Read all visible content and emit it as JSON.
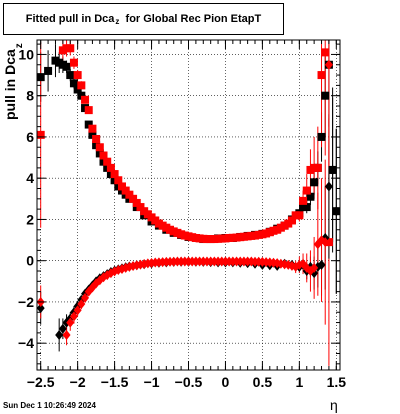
{
  "title": {
    "main": "Fitted pull in Dca",
    "sub": "z",
    "tail": "for Global Rec Pion EtapT"
  },
  "ylabel": {
    "main": "pull in Dca",
    "sub": "z"
  },
  "xlabel": "η",
  "timestamp": "Sun Dec  1 10:26:49 2024",
  "chart_data": {
    "type": "scatter",
    "xlim": [
      -2.55,
      1.55
    ],
    "ylim": [
      -5.3,
      10.7
    ],
    "grid": true,
    "xticks": [
      -2.5,
      -2,
      -1.5,
      -1,
      -0.5,
      0,
      0.5,
      1,
      1.5
    ],
    "xtick_labels": [
      "−2.5",
      "−2",
      "−1.5",
      "−1",
      "−0.5",
      "0",
      "0.5",
      "1",
      "1.5"
    ],
    "yticks": [
      -4,
      -2,
      0,
      2,
      4,
      6,
      8,
      10
    ],
    "ytick_labels": [
      "−4",
      "−2",
      "0",
      "2",
      "4",
      "6",
      "8",
      "10"
    ],
    "series": [
      {
        "color": "#000000",
        "marker": "square",
        "x": [
          -2.5,
          -2.4,
          -2.3,
          -2.25,
          -2.2,
          -2.15,
          -2.1,
          -2.05,
          -2.0,
          -1.95,
          -1.9,
          -1.85,
          -1.8,
          -1.75,
          -1.7,
          -1.65,
          -1.6,
          -1.55,
          -1.5,
          -1.45,
          -1.4,
          -1.35,
          -1.3,
          -1.2,
          -1.1,
          -1.0,
          -0.9,
          -0.8,
          -0.7,
          -0.6,
          -0.5,
          -0.4,
          -0.3,
          -0.2,
          -0.1,
          0.0,
          0.1,
          0.2,
          0.3,
          0.4,
          0.5,
          0.6,
          0.7,
          0.8,
          0.9,
          1.0,
          1.05,
          1.1,
          1.15,
          1.2,
          1.25,
          1.3,
          1.35,
          1.4,
          1.45,
          1.5
        ],
        "y": [
          8.9,
          9.2,
          9.7,
          9.6,
          9.5,
          9.4,
          9.0,
          8.6,
          8.3,
          8.0,
          7.4,
          6.6,
          6.1,
          5.6,
          5.2,
          4.8,
          4.5,
          4.2,
          3.9,
          3.6,
          3.4,
          3.2,
          3.0,
          2.6,
          2.2,
          1.9,
          1.7,
          1.5,
          1.35,
          1.25,
          1.15,
          1.1,
          1.05,
          1.05,
          1.08,
          1.1,
          1.1,
          1.15,
          1.2,
          1.25,
          1.3,
          1.4,
          1.55,
          1.7,
          2.0,
          2.3,
          2.6,
          2.6,
          3.1,
          3.8,
          4.5,
          6.0,
          8.0,
          9.5,
          4.4,
          2.4
        ],
        "yerr": [
          1.2,
          1.0,
          0.8,
          0.5,
          0.4,
          0.3,
          0.3,
          0.25,
          0.2,
          0.2,
          0.15,
          0.15,
          0.12,
          0.1,
          0.1,
          0.08,
          0.07,
          0.06,
          0.06,
          0.05,
          0.05,
          0.05,
          0.05,
          0.04,
          0.04,
          0.04,
          0.04,
          0.04,
          0.04,
          0.04,
          0.04,
          0.04,
          0.04,
          0.04,
          0.04,
          0.04,
          0.04,
          0.04,
          0.04,
          0.04,
          0.04,
          0.05,
          0.06,
          0.08,
          0.1,
          0.15,
          0.2,
          0.3,
          0.4,
          0.6,
          0.8,
          1.2,
          2.0,
          3.0,
          3.5,
          4.0
        ]
      },
      {
        "color": "#ff0000",
        "marker": "square",
        "x": [
          -2.5,
          -2.2,
          -2.15,
          -2.1,
          -2.05,
          -2.0,
          -1.95,
          -1.9,
          -1.85,
          -1.8,
          -1.75,
          -1.7,
          -1.65,
          -1.6,
          -1.55,
          -1.5,
          -1.45,
          -1.4,
          -1.35,
          -1.3,
          -1.25,
          -1.2,
          -1.15,
          -1.1,
          -1.05,
          -1.0,
          -0.95,
          -0.9,
          -0.85,
          -0.8,
          -0.75,
          -0.7,
          -0.65,
          -0.6,
          -0.55,
          -0.5,
          -0.45,
          -0.4,
          -0.35,
          -0.3,
          -0.25,
          -0.2,
          -0.15,
          -0.1,
          -0.05,
          0.0,
          0.05,
          0.1,
          0.15,
          0.2,
          0.25,
          0.3,
          0.35,
          0.4,
          0.45,
          0.5,
          0.55,
          0.6,
          0.65,
          0.7,
          0.75,
          0.8,
          0.85,
          0.9,
          0.95,
          1.0,
          1.05,
          1.1,
          1.15,
          1.2,
          1.25,
          1.3,
          1.35,
          1.4
        ],
        "y": [
          6.1,
          10.2,
          10.3,
          10.3,
          9.6,
          9.0,
          8.5,
          7.8,
          7.3,
          6.4,
          5.9,
          5.5,
          5.1,
          4.8,
          4.5,
          4.2,
          3.9,
          3.6,
          3.4,
          3.2,
          3.0,
          2.8,
          2.6,
          2.4,
          2.25,
          2.1,
          1.95,
          1.8,
          1.7,
          1.6,
          1.5,
          1.42,
          1.35,
          1.28,
          1.22,
          1.18,
          1.14,
          1.1,
          1.08,
          1.06,
          1.05,
          1.05,
          1.05,
          1.06,
          1.07,
          1.08,
          1.1,
          1.11,
          1.12,
          1.14,
          1.16,
          1.18,
          1.2,
          1.22,
          1.25,
          1.28,
          1.32,
          1.38,
          1.45,
          1.5,
          1.6,
          1.7,
          1.8,
          1.95,
          2.2,
          2.2,
          2.9,
          3.4,
          4.4,
          4.5,
          4.5,
          9.0,
          10.1,
          0.9
        ],
        "yerr": [
          4.5,
          0.5,
          0.4,
          0.35,
          0.3,
          0.25,
          0.2,
          0.18,
          0.15,
          0.12,
          0.1,
          0.1,
          0.08,
          0.07,
          0.06,
          0.06,
          0.05,
          0.05,
          0.05,
          0.05,
          0.05,
          0.04,
          0.04,
          0.04,
          0.04,
          0.04,
          0.04,
          0.04,
          0.04,
          0.04,
          0.04,
          0.04,
          0.04,
          0.04,
          0.04,
          0.04,
          0.04,
          0.04,
          0.04,
          0.04,
          0.04,
          0.04,
          0.04,
          0.04,
          0.04,
          0.04,
          0.04,
          0.04,
          0.04,
          0.04,
          0.04,
          0.04,
          0.04,
          0.04,
          0.04,
          0.04,
          0.05,
          0.05,
          0.06,
          0.07,
          0.08,
          0.1,
          0.12,
          0.15,
          0.2,
          0.3,
          0.5,
          0.8,
          1.0,
          1.5,
          2.0,
          3.5,
          5.0,
          6.0
        ]
      },
      {
        "color": "#000000",
        "marker": "diamond",
        "x": [
          -2.5,
          -2.25,
          -2.2,
          -2.15,
          -2.1,
          -2.05,
          -2.0,
          -1.95,
          -1.9,
          -1.85,
          -1.8,
          -1.75,
          -1.7,
          -1.65,
          -1.6,
          -1.55,
          -1.5,
          -1.45,
          -1.4,
          -1.35,
          -1.3,
          -1.2,
          -1.1,
          -1.0,
          -0.9,
          -0.8,
          -0.7,
          -0.6,
          -0.5,
          -0.4,
          -0.3,
          -0.2,
          -0.1,
          0.0,
          0.1,
          0.2,
          0.3,
          0.4,
          0.5,
          0.6,
          0.7,
          0.8,
          0.9,
          1.0,
          1.05,
          1.1,
          1.15,
          1.2,
          1.25,
          1.3,
          1.35,
          1.4,
          1.45,
          1.5
        ],
        "y": [
          -2.3,
          -3.6,
          -3.3,
          -3.0,
          -2.8,
          -2.5,
          -2.2,
          -1.9,
          -1.6,
          -1.4,
          -1.2,
          -1.0,
          -0.85,
          -0.75,
          -0.65,
          -0.55,
          -0.48,
          -0.42,
          -0.37,
          -0.32,
          -0.28,
          -0.22,
          -0.17,
          -0.13,
          -0.1,
          -0.08,
          -0.06,
          -0.05,
          -0.05,
          -0.05,
          -0.06,
          -0.07,
          -0.08,
          -0.08,
          -0.08,
          -0.1,
          -0.12,
          -0.15,
          -0.2,
          -0.22,
          -0.25,
          -0.15,
          -0.2,
          -0.3,
          -0.2,
          -0.5,
          -0.3,
          -0.6,
          -0.3,
          -0.2,
          1.1,
          3.6,
          4.4,
          2.4
        ],
        "yerr": [
          0.8,
          0.8,
          0.5,
          0.4,
          0.3,
          0.3,
          0.25,
          0.2,
          0.2,
          0.15,
          0.12,
          0.1,
          0.1,
          0.08,
          0.07,
          0.06,
          0.06,
          0.05,
          0.05,
          0.05,
          0.05,
          0.04,
          0.04,
          0.04,
          0.04,
          0.04,
          0.04,
          0.04,
          0.04,
          0.04,
          0.04,
          0.04,
          0.04,
          0.04,
          0.04,
          0.04,
          0.04,
          0.04,
          0.05,
          0.06,
          0.08,
          0.1,
          0.15,
          0.2,
          0.3,
          0.4,
          0.5,
          0.8,
          1.0,
          1.5,
          2.5,
          3.5,
          4.0,
          4.0
        ]
      },
      {
        "color": "#ff0000",
        "marker": "diamond",
        "x": [
          -2.5,
          -2.15,
          -2.1,
          -2.05,
          -2.0,
          -1.95,
          -1.9,
          -1.85,
          -1.8,
          -1.75,
          -1.7,
          -1.65,
          -1.6,
          -1.55,
          -1.5,
          -1.45,
          -1.4,
          -1.35,
          -1.3,
          -1.25,
          -1.2,
          -1.15,
          -1.1,
          -1.05,
          -1.0,
          -0.95,
          -0.9,
          -0.85,
          -0.8,
          -0.75,
          -0.7,
          -0.65,
          -0.6,
          -0.55,
          -0.5,
          -0.45,
          -0.4,
          -0.35,
          -0.3,
          -0.25,
          -0.2,
          -0.15,
          -0.1,
          -0.05,
          0.0,
          0.05,
          0.1,
          0.15,
          0.2,
          0.25,
          0.3,
          0.35,
          0.4,
          0.45,
          0.5,
          0.55,
          0.6,
          0.65,
          0.7,
          0.75,
          0.8,
          0.85,
          0.9,
          0.95,
          1.0,
          1.05,
          1.1,
          1.15,
          1.2,
          1.25,
          1.3,
          1.35,
          1.4
        ],
        "y": [
          -2.0,
          -3.6,
          -3.0,
          -2.7,
          -2.4,
          -2.1,
          -1.8,
          -1.5,
          -1.3,
          -1.1,
          -0.95,
          -0.8,
          -0.7,
          -0.6,
          -0.52,
          -0.45,
          -0.4,
          -0.35,
          -0.3,
          -0.26,
          -0.22,
          -0.19,
          -0.16,
          -0.13,
          -0.11,
          -0.09,
          -0.08,
          -0.07,
          -0.06,
          -0.05,
          -0.05,
          -0.04,
          -0.04,
          -0.04,
          -0.04,
          -0.04,
          -0.04,
          -0.04,
          -0.04,
          -0.04,
          -0.04,
          -0.04,
          -0.04,
          -0.04,
          -0.04,
          -0.04,
          -0.04,
          -0.04,
          -0.04,
          -0.04,
          -0.04,
          -0.04,
          -0.05,
          -0.05,
          -0.06,
          -0.07,
          -0.08,
          -0.1,
          -0.12,
          -0.15,
          -0.18,
          -0.2,
          -0.25,
          -0.3,
          -0.2,
          -0.15,
          -0.35,
          -0.5,
          -0.35,
          0.8,
          1.0,
          0.9,
          9.5
        ],
        "yerr": [
          0.8,
          0.5,
          0.4,
          0.35,
          0.3,
          0.25,
          0.2,
          0.18,
          0.15,
          0.12,
          0.1,
          0.1,
          0.08,
          0.07,
          0.06,
          0.06,
          0.05,
          0.05,
          0.05,
          0.05,
          0.04,
          0.04,
          0.04,
          0.04,
          0.04,
          0.04,
          0.04,
          0.04,
          0.04,
          0.04,
          0.04,
          0.04,
          0.04,
          0.04,
          0.04,
          0.04,
          0.04,
          0.04,
          0.04,
          0.04,
          0.04,
          0.04,
          0.04,
          0.04,
          0.04,
          0.04,
          0.04,
          0.04,
          0.04,
          0.04,
          0.04,
          0.04,
          0.04,
          0.04,
          0.05,
          0.05,
          0.06,
          0.07,
          0.08,
          0.1,
          0.12,
          0.15,
          0.2,
          0.3,
          0.4,
          0.5,
          0.7,
          1.0,
          1.5,
          2.5,
          3.0,
          4.0,
          5.0
        ]
      }
    ]
  }
}
